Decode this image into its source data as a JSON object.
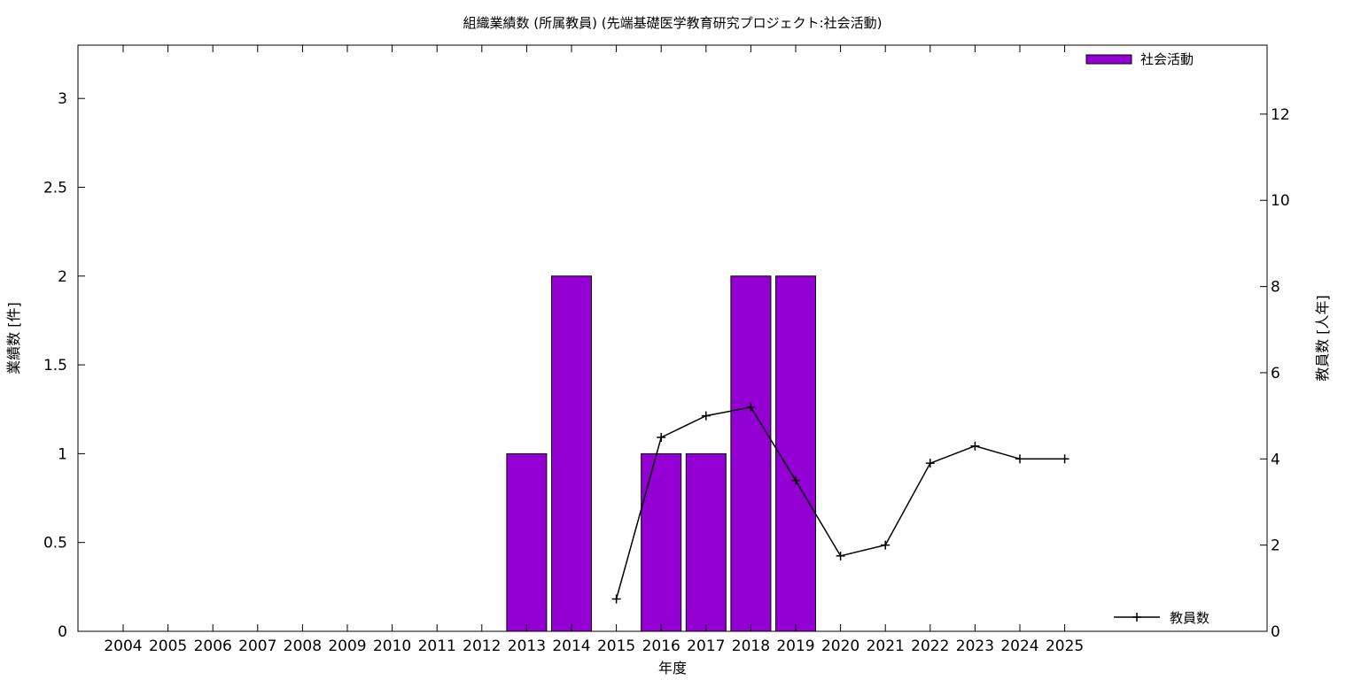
{
  "chart_data": {
    "type": "bar",
    "title": "組織業績数 (所属教員) (先端基礎医学教育研究プロジェクト:社会活動)",
    "xlabel": "年度",
    "ylabel": "業績数 [件]",
    "y2label": "教員数 [人年]",
    "categories": [
      "2004",
      "2005",
      "2006",
      "2007",
      "2008",
      "2009",
      "2010",
      "2011",
      "2012",
      "2013",
      "2014",
      "2015",
      "2016",
      "2017",
      "2018",
      "2019",
      "2020",
      "2021",
      "2022",
      "2023",
      "2024",
      "2025"
    ],
    "ylim": [
      0,
      3.3
    ],
    "y2lim": [
      0,
      13.6
    ],
    "yticks": [
      "0",
      "0.5",
      "1",
      "1.5",
      "2",
      "2.5",
      "3"
    ],
    "y2ticks": [
      "0",
      "2",
      "4",
      "6",
      "8",
      "10",
      "12"
    ],
    "grid": false,
    "series": [
      {
        "name": "社会活動",
        "type": "bar",
        "axis": "left",
        "color": "#9400d3",
        "values": [
          0,
          0,
          0,
          0,
          0,
          0,
          0,
          0,
          0,
          1,
          2,
          0,
          1,
          1,
          2,
          2,
          0,
          0,
          0,
          0,
          0,
          0
        ]
      },
      {
        "name": "教員数",
        "type": "line",
        "axis": "right",
        "color": "#000000",
        "marker": "plus",
        "values": [
          null,
          null,
          null,
          null,
          null,
          null,
          null,
          null,
          null,
          null,
          null,
          0.75,
          4.5,
          5.0,
          5.2,
          3.5,
          1.75,
          2.0,
          3.9,
          4.3,
          4.0,
          4.0
        ]
      }
    ],
    "legend": [
      {
        "label": "社会活動",
        "placement": "top-right"
      },
      {
        "label": "教員数",
        "placement": "bottom-right"
      }
    ]
  }
}
